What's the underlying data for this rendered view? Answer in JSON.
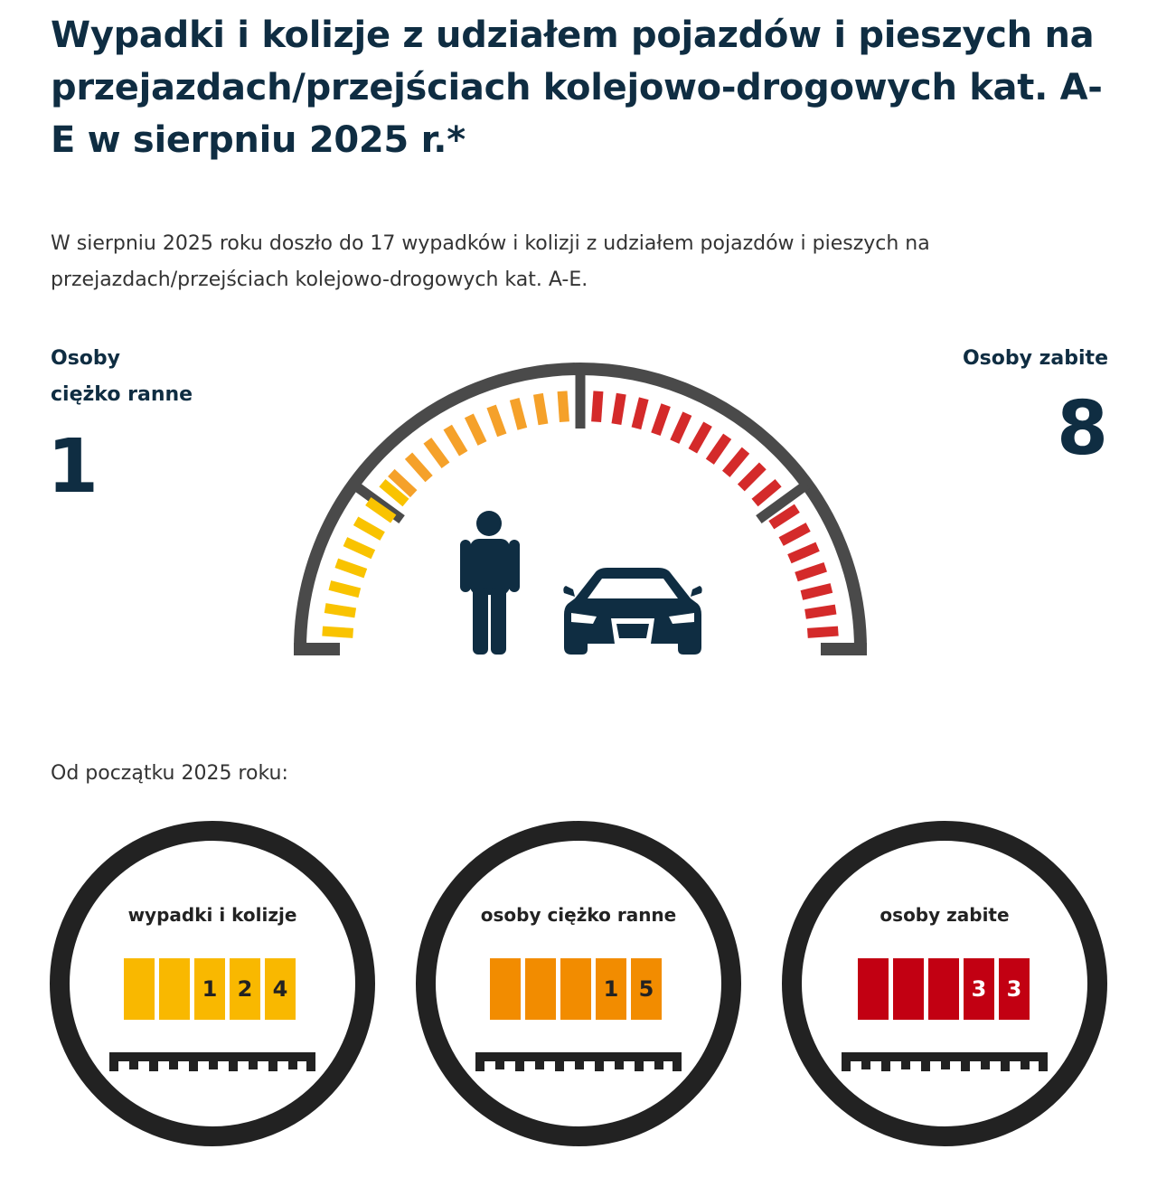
{
  "title": "Wypadki i kolizje z udziałem pojazdów i pieszych na przejazdach/przejściach kolejowo-drogowych kat. A-E w sierpniu 2025 r.*",
  "intro": "W sierpniu 2025 roku doszło do 17 wypadków i kolizji z udziałem pojazdów i pieszych na przejazdach/przejściach kolejowo-drogowych kat. A-E.",
  "stats": {
    "injured": {
      "label_line1": "Osoby",
      "label_line2": "ciężko ranne",
      "value": "1"
    },
    "killed": {
      "label": "Osoby zabite",
      "value": "8"
    }
  },
  "since_label": "Od początku 2025 roku:",
  "counters": [
    {
      "label": "wypadki i kolizje",
      "digits": [
        "",
        "",
        "1",
        "2",
        "4"
      ],
      "color": "#f9b800",
      "digit_text_color": "#222222"
    },
    {
      "label": "osoby ciężko ranne",
      "digits": [
        "",
        "",
        "",
        "1",
        "5"
      ],
      "color": "#f28c00",
      "digit_text_color": "#222222"
    },
    {
      "label": "osoby zabite",
      "digits": [
        "",
        "",
        "",
        "3",
        "3"
      ],
      "color": "#c20012",
      "digit_text_color": "#ffffff"
    }
  ],
  "colors": {
    "navy": "#0f2d42",
    "gauge_frame": "#4a4a4a",
    "yellow": "#f9c300",
    "orange": "#f5a12a",
    "red": "#d42a2a",
    "ring": "#222222"
  },
  "icons": [
    "pedestrian-icon",
    "car-icon"
  ]
}
